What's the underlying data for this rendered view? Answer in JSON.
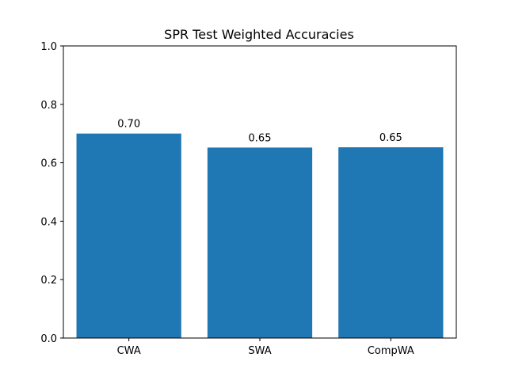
{
  "chart_data": {
    "type": "bar",
    "title": "SPR Test Weighted Accuracies",
    "xlabel": "",
    "ylabel": "",
    "categories": [
      "CWA",
      "SWA",
      "CompWA"
    ],
    "values": [
      0.7,
      0.652,
      0.653
    ],
    "value_labels": [
      "0.70",
      "0.65",
      "0.65"
    ],
    "ylim": [
      0,
      1.0
    ],
    "yticks": [
      0.0,
      0.2,
      0.4,
      0.6,
      0.8,
      1.0
    ],
    "ytick_labels": [
      "0.0",
      "0.2",
      "0.4",
      "0.6",
      "0.8",
      "1.0"
    ],
    "grid": false,
    "bar_color": "#1f77b4"
  }
}
